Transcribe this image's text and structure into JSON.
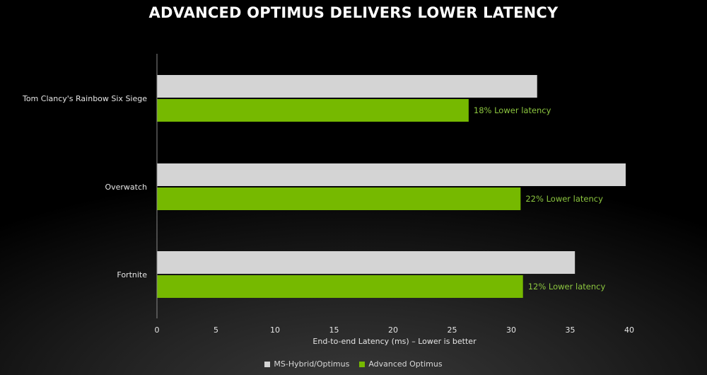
{
  "title": "ADVANCED OPTIMUS DELIVERS LOWER LATENCY",
  "colors": {
    "ms_hybrid": "#d4d4d4",
    "advanced": "#76b900",
    "annotation": "#8cc63f",
    "axis": "#8a8a8a",
    "text": "#e6e6e6"
  },
  "legend": {
    "ms_hybrid_label": "MS-Hybrid/Optimus",
    "advanced_label": "Advanced Optimus"
  },
  "chart_data": {
    "type": "bar",
    "orientation": "horizontal",
    "title": "ADVANCED OPTIMUS DELIVERS LOWER LATENCY",
    "xlabel": "End-to-end Latency (ms) – Lower is better",
    "ylabel": "",
    "xlim": [
      0,
      40
    ],
    "xticks": [
      0,
      5,
      10,
      15,
      20,
      25,
      30,
      35,
      40
    ],
    "grid": false,
    "legend_position": "bottom",
    "categories": [
      "Tom Clancy's Rainbow Six Siege",
      "Overwatch",
      "Fortnite"
    ],
    "series": [
      {
        "name": "MS-Hybrid/Optimus",
        "values": [
          32.2,
          39.7,
          35.4
        ]
      },
      {
        "name": "Advanced Optimus",
        "values": [
          26.4,
          30.8,
          31.0
        ]
      }
    ],
    "annotations": [
      "18% Lower latency",
      "22% Lower latency",
      "12% Lower latency"
    ]
  }
}
